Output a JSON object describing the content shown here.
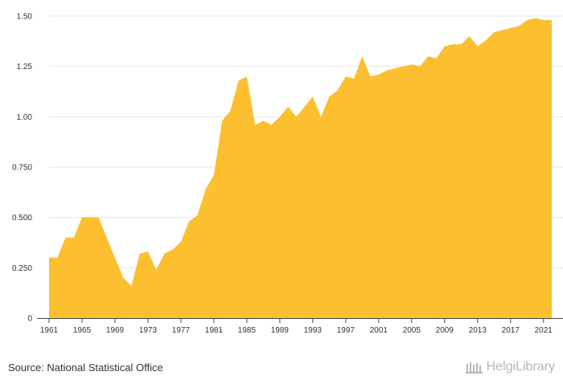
{
  "footer": {
    "source": "Source: National Statistical Office",
    "brand": "HelgiLibrary"
  },
  "colors": {
    "area": "#FBBF2F",
    "axis": "#444444",
    "grid": "#E6E6E6",
    "text": "#333333",
    "brand": "#B5B5B5"
  },
  "chart_data": {
    "type": "area",
    "title": "",
    "xlabel": "",
    "ylabel": "",
    "ylim": [
      0,
      1.5
    ],
    "yticks": [
      0,
      0.25,
      0.5,
      0.75,
      1.0,
      1.25,
      1.5
    ],
    "ytick_labels": [
      "0",
      "0.250",
      "0.500",
      "0.750",
      "1.00",
      "1.25",
      "1.50"
    ],
    "xlim": [
      1961,
      2022
    ],
    "xticks": [
      1961,
      1965,
      1969,
      1973,
      1977,
      1981,
      1985,
      1989,
      1993,
      1997,
      2001,
      2005,
      2009,
      2013,
      2017,
      2021
    ],
    "grid": true,
    "series": [
      {
        "x": [
          1961,
          1962,
          1963,
          1964,
          1965,
          1966,
          1967,
          1968,
          1969,
          1970,
          1971,
          1972,
          1973,
          1974,
          1975,
          1976,
          1977,
          1978,
          1979,
          1980,
          1981,
          1982,
          1983,
          1984,
          1985,
          1986,
          1987,
          1988,
          1989,
          1990,
          1991,
          1992,
          1993,
          1994,
          1995,
          1996,
          1997,
          1998,
          1999,
          2000,
          2001,
          2002,
          2003,
          2004,
          2005,
          2006,
          2007,
          2008,
          2009,
          2010,
          2011,
          2012,
          2013,
          2014,
          2015,
          2016,
          2017,
          2018,
          2019,
          2020,
          2021,
          2022
        ],
        "values": [
          0.3,
          0.3,
          0.4,
          0.4,
          0.5,
          0.5,
          0.5,
          0.4,
          0.3,
          0.2,
          0.16,
          0.32,
          0.33,
          0.24,
          0.32,
          0.34,
          0.38,
          0.48,
          0.51,
          0.64,
          0.71,
          0.98,
          1.03,
          1.18,
          1.2,
          0.96,
          0.98,
          0.96,
          1.0,
          1.05,
          1.0,
          1.05,
          1.1,
          1.0,
          1.1,
          1.13,
          1.2,
          1.19,
          1.3,
          1.2,
          1.21,
          1.23,
          1.24,
          1.25,
          1.26,
          1.25,
          1.3,
          1.29,
          1.35,
          1.36,
          1.36,
          1.4,
          1.35,
          1.38,
          1.42,
          1.43,
          1.44,
          1.45,
          1.48,
          1.49,
          1.48,
          1.48
        ]
      }
    ]
  }
}
